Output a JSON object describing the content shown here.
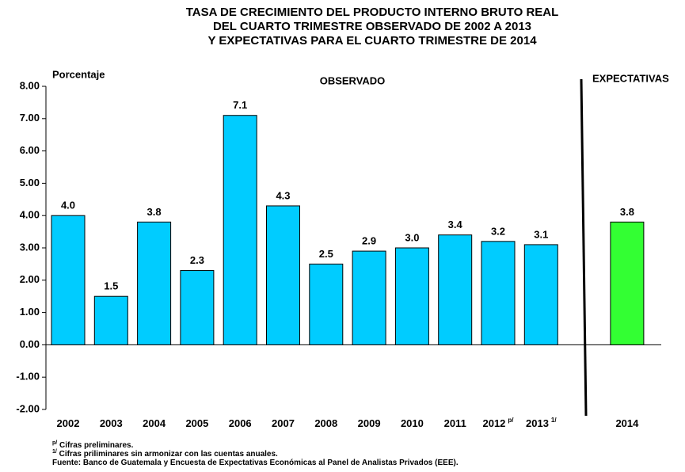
{
  "chart_data": {
    "type": "bar",
    "title": [
      "TASA DE CRECIMIENTO DEL PRODUCTO INTERNO BRUTO REAL",
      "DEL CUARTO TRIMESTRE OBSERVADO DE  2002 A 2013",
      "Y EXPECTATIVAS PARA EL CUARTO TRIMESTRE  DE  2014"
    ],
    "y_label": "Porcentaje",
    "annotations": [
      "OBSERVADO",
      "EXPECTATIVAS"
    ],
    "categories": [
      "2002",
      "2003",
      "2004",
      "2005",
      "2006",
      "2007",
      "2008",
      "2009",
      "2010",
      "2011",
      "2012",
      "2013",
      "2014"
    ],
    "category_superscripts": [
      null,
      null,
      null,
      null,
      null,
      null,
      null,
      null,
      null,
      null,
      "p/",
      "1/",
      null
    ],
    "values": [
      4.0,
      1.5,
      3.8,
      2.3,
      7.1,
      4.3,
      2.5,
      2.9,
      3.0,
      3.4,
      3.2,
      3.1,
      3.8
    ],
    "value_labels": [
      "4.0",
      "1.5",
      "3.8",
      "2.3",
      "7.1",
      "4.3",
      "2.5",
      "2.9",
      "3.0",
      "3.4",
      "3.2",
      "3.1",
      "3.8"
    ],
    "colors": [
      "#00ccff",
      "#00ccff",
      "#00ccff",
      "#00ccff",
      "#00ccff",
      "#00ccff",
      "#00ccff",
      "#00ccff",
      "#00ccff",
      "#00ccff",
      "#00ccff",
      "#00ccff",
      "#33ff33"
    ],
    "ylim": [
      -2,
      8
    ],
    "yticks": [
      {
        "value": -2,
        "label": "-2.00"
      },
      {
        "value": -1,
        "label": "-1.00"
      },
      {
        "value": 0,
        "label": "0.00"
      },
      {
        "value": 1,
        "label": "1.00"
      },
      {
        "value": 2,
        "label": "2.00"
      },
      {
        "value": 3,
        "label": "3.00"
      },
      {
        "value": 4,
        "label": "4.00"
      },
      {
        "value": 5,
        "label": "5.00"
      },
      {
        "value": 6,
        "label": "6.00"
      },
      {
        "value": 7,
        "label": "7.00"
      },
      {
        "value": 8,
        "label": "8.00"
      }
    ],
    "footnotes": [
      {
        "mark": "p/",
        "text": " Cifras preliminares."
      },
      {
        "mark": "1/",
        "text": " Cifras priliminares sin armonizar con las cuentas anuales."
      },
      {
        "mark": null,
        "text": "Fuente:  Banco de Guatemala y Encuesta de Expectativas Económicas al Panel de Analistas Privados (EEE)."
      }
    ]
  }
}
